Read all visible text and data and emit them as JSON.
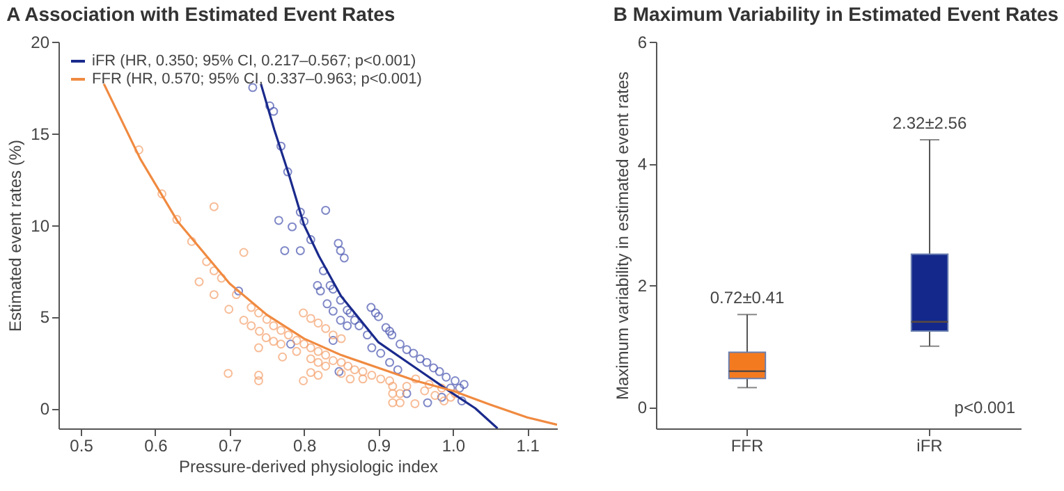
{
  "chart_data": [
    {
      "type": "scatter",
      "title": "A  Association with Estimated Event Rates",
      "xlabel": "Pressure-derived physiologic index",
      "ylabel": "Estimated event rates (%)",
      "xlim": [
        0.47,
        1.14
      ],
      "ylim": [
        -1.1,
        20
      ],
      "xticks": [
        0.5,
        0.6,
        0.7,
        0.8,
        0.9,
        {
          "value": 1,
          "label": "1.0"
        },
        1.1
      ],
      "yticks": [
        0,
        5,
        10,
        15,
        20
      ],
      "grid": false,
      "legend": "top left",
      "marker": "circle",
      "series": [
        {
          "type": "scatter",
          "color": "#4a56b0",
          "x": [
            0.731,
            0.754,
            0.759,
            0.769,
            0.778,
            0.795,
            0.829,
            0.766,
            0.784,
            0.8,
            0.809,
            0.774,
            0.795,
            0.846,
            0.849,
            0.854,
            0.826,
            0.818,
            0.822,
            0.835,
            0.839,
            0.712,
            0.831,
            0.849,
            0.839,
            0.858,
            0.862,
            0.849,
            0.868,
            0.858,
            0.874,
            0.89,
            0.896,
            0.9,
            0.91,
            0.915,
            0.918,
            0.885,
            0.839,
            0.782,
            0.929,
            0.938,
            0.947,
            0.956,
            0.965,
            0.974,
            0.982,
            0.991,
            1.003,
            1.015,
            0.891,
            0.903,
            0.915,
            0.926,
            0.847,
            0.938,
            0.966,
            0.985,
            1.012,
            1.009,
            0.997
          ],
          "values": [
            17.5,
            16.5,
            16.2,
            14.3,
            12.9,
            10.7,
            10.8,
            10.25,
            9.9,
            10.2,
            9.2,
            8.6,
            8.6,
            9.0,
            8.6,
            8.2,
            7.5,
            6.7,
            6.4,
            6.7,
            6.5,
            6.4,
            5.7,
            5.9,
            5.3,
            5.35,
            5.2,
            4.8,
            4.8,
            4.5,
            4.5,
            5.5,
            5.2,
            5.0,
            4.4,
            4.2,
            4.0,
            4.0,
            3.7,
            3.5,
            3.5,
            3.2,
            3.0,
            2.7,
            2.5,
            2.2,
            2.0,
            1.7,
            1.5,
            1.3,
            3.3,
            3.0,
            2.5,
            2.1,
            2.0,
            0.8,
            0.3,
            0.6,
            0.4,
            1.1,
            1.1
          ]
        },
        {
          "type": "scatter",
          "color": "#f4a06c",
          "x": [
            0.578,
            0.609,
            0.629,
            0.649,
            0.679,
            0.669,
            0.679,
            0.689,
            0.659,
            0.679,
            0.709,
            0.719,
            0.699,
            0.729,
            0.739,
            0.75,
            0.719,
            0.729,
            0.759,
            0.769,
            0.779,
            0.74,
            0.749,
            0.759,
            0.769,
            0.739,
            0.79,
            0.8,
            0.809,
            0.799,
            0.809,
            0.819,
            0.829,
            0.839,
            0.85,
            0.819,
            0.829,
            0.839,
            0.85,
            0.859,
            0.868,
            0.879,
            0.891,
            0.903,
            0.915,
            0.771,
            0.79,
            0.809,
            0.819,
            0.829,
            0.698,
            0.739,
            0.739,
            0.799,
            0.809,
            0.819,
            0.85,
            0.862,
            0.879,
            0.919,
            0.919,
            0.919,
            0.929,
            0.929,
            0.938,
            0.949,
            0.962,
            0.976,
            0.988,
            0.997,
            0.95,
            0.968,
            0.985,
            1.003
          ],
          "values": [
            14.1,
            11.7,
            10.3,
            9.1,
            11.0,
            8.0,
            7.5,
            7.1,
            6.9,
            6.2,
            6.2,
            8.5,
            5.4,
            5.5,
            5.2,
            4.85,
            4.8,
            4.5,
            4.5,
            4.25,
            4.0,
            4.2,
            3.85,
            3.65,
            3.5,
            3.3,
            3.7,
            3.5,
            3.3,
            5.2,
            4.9,
            4.65,
            4.35,
            4.0,
            3.8,
            3.1,
            2.9,
            2.6,
            2.5,
            2.3,
            2.1,
            2.0,
            1.8,
            1.6,
            1.5,
            2.8,
            3.1,
            2.7,
            2.5,
            2.3,
            1.9,
            1.8,
            1.5,
            1.5,
            1.95,
            1.8,
            1.9,
            1.6,
            1.6,
            1.2,
            0.8,
            0.3,
            0.3,
            0.8,
            1.2,
            0.25,
            0.95,
            0.7,
            0.4,
            0.6,
            1.6,
            1.3,
            1.1,
            0.8
          ]
        },
        {
          "type": "line",
          "name": "iFR (HR, 0.350; 95% CI, 0.217–0.567; p<0.001)",
          "color": "#1a2a8c",
          "marker": "none",
          "x": [
            0.742,
            0.76,
            0.78,
            0.8,
            0.82,
            0.85,
            0.9,
            0.95,
            1.0,
            1.03,
            1.06
          ],
          "values": [
            17.7,
            15.2,
            12.7,
            10.0,
            8.3,
            6.1,
            3.6,
            2.2,
            0.8,
            0.0,
            -1.1
          ]
        },
        {
          "type": "line",
          "name": "FFR (HR, 0.570; 95% CI, 0.337–0.963; p<0.001)",
          "color": "#f08a40",
          "marker": "none",
          "x": [
            0.531,
            0.58,
            0.63,
            0.7,
            0.75,
            0.8,
            0.85,
            0.9,
            0.95,
            1.0,
            1.05,
            1.1,
            1.14
          ],
          "values": [
            17.7,
            13.6,
            10.2,
            6.8,
            5.1,
            3.8,
            2.9,
            2.2,
            1.5,
            0.95,
            0.2,
            -0.5,
            -0.9
          ]
        }
      ]
    },
    {
      "type": "box",
      "title": "B  Maximum Variability in Estimated Event Rates",
      "ylabel": "Maximum variability in estimated event rates",
      "categories": [
        "FFR",
        "iFR"
      ],
      "ylim": [
        -0.35,
        6
      ],
      "yticks": [
        0,
        2,
        4,
        6
      ],
      "grid": false,
      "colors": [
        "#f47a20",
        "#14288c"
      ],
      "boxes": [
        {
          "low": 0.32,
          "q1": 0.47,
          "median": 0.59,
          "q3": 0.9,
          "high": 1.52
        },
        {
          "low": 1.0,
          "q1": 1.25,
          "median": 1.4,
          "q3": 2.51,
          "high": 4.39
        }
      ],
      "annotations": [
        {
          "text": "0.72±0.41",
          "x": "FFR",
          "y": 1.52
        },
        {
          "text": "2.32±2.56",
          "x": "iFR",
          "y": 4.39
        },
        "p<0.001"
      ]
    }
  ]
}
